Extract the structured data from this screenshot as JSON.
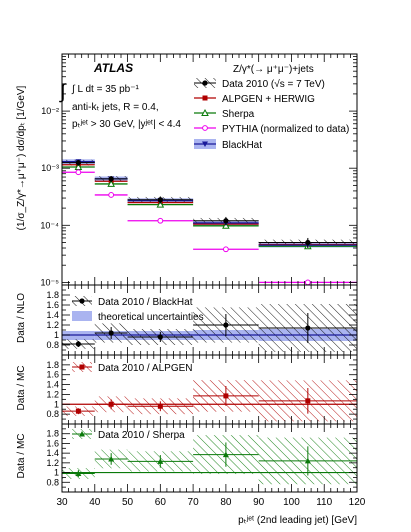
{
  "chart_data": [
    {
      "type": "line",
      "panel": "main",
      "title": "Z/γ*(→ μ⁺μ⁻)+jets",
      "experiment": "ATLAS",
      "annotations": [
        "∫ L dt = 35 pb⁻¹",
        "anti-kₜ jets,  R = 0.4,",
        "pₜʲᵉᵗ > 30 GeV, |yʲᵉᵗ| < 4.4"
      ],
      "ylabel": "(1/σ_Z/γ*→μ⁺μ⁻) dσ/dpₜ [1/GeV]",
      "yscale": "log",
      "ylim": [
        9e-06,
        0.1
      ],
      "xlim": [
        30,
        120
      ],
      "yticklabels": [
        "10⁻⁵",
        "10⁻⁴",
        "10⁻³",
        "10⁻²"
      ],
      "legend_position": "top-right",
      "bins": [
        [
          30,
          40
        ],
        [
          40,
          50
        ],
        [
          50,
          70
        ],
        [
          70,
          90
        ],
        [
          90,
          120
        ]
      ],
      "x": [
        35,
        45,
        60,
        80,
        105
      ],
      "series": [
        {
          "name": "Data 2010 (√s = 7 TeV)",
          "color": "#000000",
          "values": [
            0.00125,
            0.00065,
            0.00028,
            0.00012,
            5e-05
          ],
          "errors": [
            0.00015,
            8e-05,
            4e-05,
            2e-05,
            1e-05
          ]
        },
        {
          "name": "ALPGEN + HERWIG",
          "color": "#b00000",
          "values": [
            0.00115,
            0.00059,
            0.00025,
            0.000105,
            4.6e-05
          ]
        },
        {
          "name": "Sherpa",
          "color": "#0a7a0a",
          "values": [
            0.00105,
            0.00053,
            0.00023,
            9.8e-05,
            4.3e-05
          ]
        },
        {
          "name": "PYTHIA (normalized to data)",
          "color": "#ee00ee",
          "values": [
            0.00085,
            0.00034,
            0.00012,
            3.8e-05,
            1e-05
          ]
        },
        {
          "name": "BlackHat",
          "color": "#1a1a9a",
          "values": [
            0.0013,
            0.00065,
            0.00027,
            0.00011,
            4.5e-05
          ]
        }
      ]
    },
    {
      "type": "line",
      "panel": "ratio-nlo",
      "ylabel": "Data / NLO",
      "ylim": [
        0.6,
        2.0
      ],
      "yticklabels": [
        "0.8",
        "1",
        "1.2",
        "1.4",
        "1.6",
        "1.8"
      ],
      "legend": [
        "Data 2010 / BlackHat",
        "theoretical uncertainties"
      ],
      "bins": [
        [
          30,
          40
        ],
        [
          40,
          50
        ],
        [
          50,
          70
        ],
        [
          70,
          90
        ],
        [
          90,
          120
        ]
      ],
      "x": [
        35,
        45,
        60,
        80,
        105
      ],
      "values": [
        0.82,
        1.04,
        0.96,
        1.2,
        1.14
      ],
      "errors": [
        0.06,
        0.12,
        0.1,
        0.22,
        0.3
      ],
      "band": [
        [
          0.9,
          1.08
        ],
        [
          0.9,
          1.08
        ],
        [
          0.9,
          1.08
        ],
        [
          0.9,
          1.1
        ],
        [
          0.88,
          1.12
        ]
      ]
    },
    {
      "type": "line",
      "panel": "ratio-alpgen",
      "ylabel": "Data / MC",
      "ylim": [
        0.6,
        2.0
      ],
      "yticklabels": [
        "0.8",
        "1",
        "1.2",
        "1.4",
        "1.6",
        "1.8"
      ],
      "legend": [
        "Data 2010 / ALPGEN"
      ],
      "bins": [
        [
          30,
          40
        ],
        [
          40,
          50
        ],
        [
          50,
          70
        ],
        [
          70,
          90
        ],
        [
          90,
          120
        ]
      ],
      "x": [
        35,
        45,
        60,
        80,
        105
      ],
      "values": [
        0.86,
        1.0,
        0.96,
        1.17,
        1.07
      ],
      "errors": [
        0.06,
        0.1,
        0.1,
        0.2,
        0.26
      ]
    },
    {
      "type": "line",
      "panel": "ratio-sherpa",
      "ylabel": "Data / MC",
      "xlabel": "pₜʲᵉᵗ (2nd leading jet) [GeV]",
      "ylim": [
        0.6,
        2.0
      ],
      "yticklabels": [
        "0.8",
        "1",
        "1.2",
        "1.4",
        "1.6",
        "1.8"
      ],
      "xticklabels": [
        "30",
        "40",
        "50",
        "60",
        "70",
        "80",
        "90",
        "100",
        "110",
        "120"
      ],
      "legend": [
        "Data 2010 / Sherpa"
      ],
      "bins": [
        [
          30,
          40
        ],
        [
          40,
          50
        ],
        [
          50,
          70
        ],
        [
          70,
          90
        ],
        [
          90,
          120
        ]
      ],
      "x": [
        35,
        45,
        60,
        80,
        105
      ],
      "values": [
        0.98,
        1.28,
        1.23,
        1.37,
        1.24
      ],
      "errors": [
        0.07,
        0.12,
        0.13,
        0.25,
        0.3
      ]
    }
  ],
  "colors": {
    "data": "#000000",
    "alpgen": "#b00000",
    "sherpa": "#0a7a0a",
    "pythia": "#ee00ee",
    "blackhat": "#1a1a9a",
    "band": "#aab4f0"
  }
}
